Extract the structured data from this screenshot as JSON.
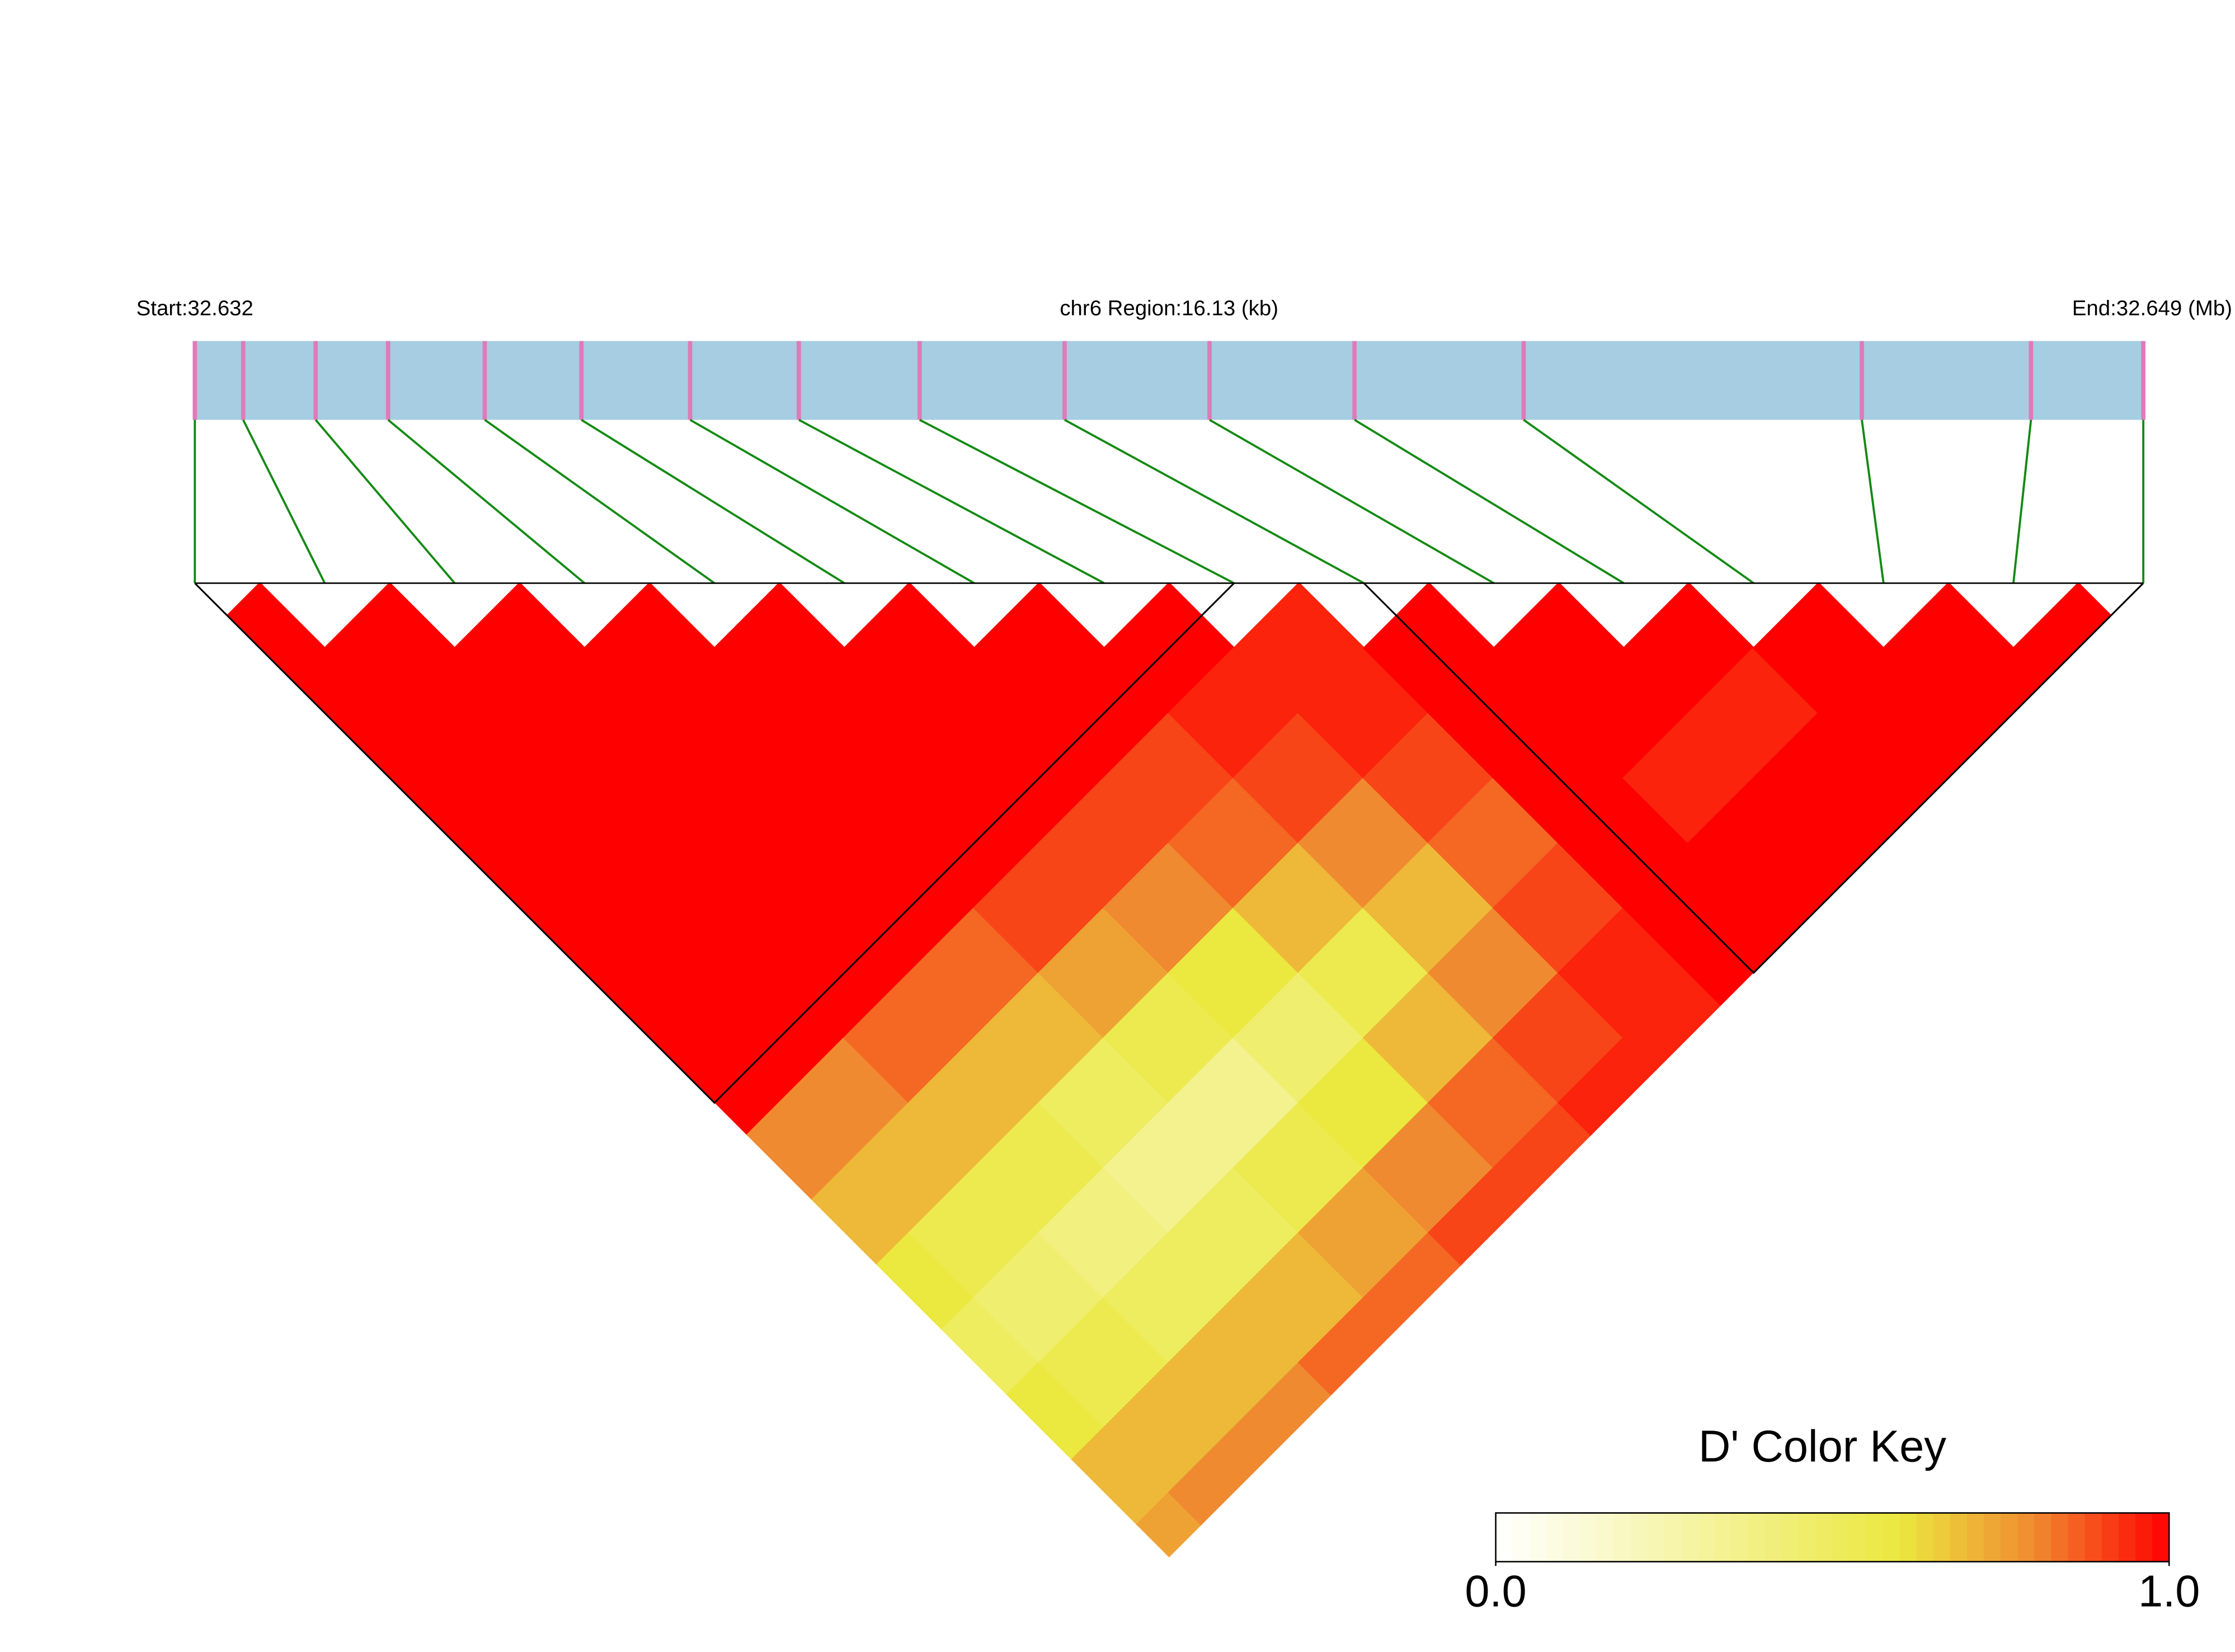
{
  "chart_data": {
    "type": "ld_heatmap",
    "start_label": "Start:32.632",
    "region_label": "chr6 Region:16.13 (kb)",
    "end_label": "End:32.649 (Mb)",
    "legend_title": "D' Color Key",
    "xlim": [
      0,
      16.13
    ],
    "positions": [
      0,
      0.4,
      1.0,
      1.6,
      2.4,
      3.2,
      4.1,
      5.0,
      6.0,
      7.2,
      8.4,
      9.6,
      11.0,
      13.8,
      15.2,
      16.13
    ],
    "values": [
      [
        1,
        1,
        1,
        1,
        1,
        1,
        1,
        1,
        0.8,
        0.7,
        0.6,
        0.5,
        0.6,
        0.7,
        0.75
      ],
      [
        1,
        1,
        1,
        1,
        1,
        1,
        1,
        0.8,
        0.7,
        0.55,
        0.45,
        0.55,
        0.7,
        0.8
      ],
      [
        1,
        1,
        1,
        1,
        1,
        1,
        0.85,
        0.7,
        0.55,
        0.4,
        0.5,
        0.7,
        0.8
      ],
      [
        1,
        1,
        1,
        1,
        1,
        0.85,
        0.7,
        0.5,
        0.35,
        0.5,
        0.7,
        0.85
      ],
      [
        1,
        1,
        1,
        1,
        0.9,
        0.75,
        0.55,
        0.35,
        0.55,
        0.75,
        0.85
      ],
      [
        1,
        1,
        1,
        0.9,
        0.8,
        0.6,
        0.45,
        0.6,
        0.8,
        0.9
      ],
      [
        1,
        1,
        0.9,
        0.85,
        0.7,
        0.55,
        0.7,
        0.85,
        0.9
      ],
      [
        1,
        0.95,
        0.9,
        0.8,
        0.7,
        0.8,
        0.9,
        0.95
      ],
      [
        0.95,
        0.95,
        0.9,
        0.85,
        0.9,
        0.95,
        0.95
      ],
      [
        1,
        1,
        1,
        1,
        1,
        1
      ],
      [
        1,
        1,
        0.95,
        1,
        1
      ],
      [
        1,
        0.95,
        1,
        1
      ],
      [
        1,
        1,
        1
      ],
      [
        1,
        1
      ],
      [
        1
      ]
    ],
    "blocks": [
      [
        0,
        8
      ],
      [
        9,
        15
      ]
    ],
    "clim": [
      0,
      1
    ],
    "colorscale": [
      [
        0,
        "#ffffff"
      ],
      [
        0.6,
        "#ebe83f"
      ],
      [
        0.8,
        "#f08a30"
      ],
      [
        1,
        "#ff0000"
      ]
    ],
    "colorbar_ticks": [
      {
        "value": 0,
        "label": "0.0"
      },
      {
        "value": 1,
        "label": "1.0"
      }
    ],
    "track_color": "#a6cde2",
    "snp_color": "#e07ab8",
    "link_color": "#138a13"
  }
}
